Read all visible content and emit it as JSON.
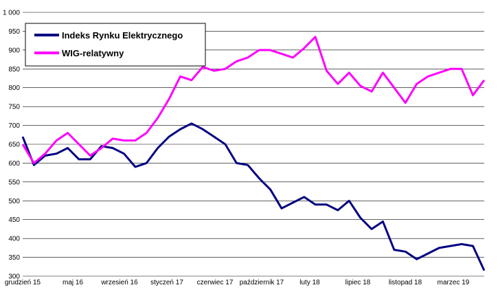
{
  "chart_data": {
    "type": "line",
    "title": "",
    "xlabel": "",
    "ylabel": "",
    "ylim": [
      300,
      1000
    ],
    "yticks": [
      300,
      350,
      400,
      450,
      500,
      550,
      600,
      650,
      700,
      750,
      800,
      850,
      900,
      950,
      1000
    ],
    "ytick_labels": [
      "300",
      "350",
      "400",
      "450",
      "500",
      "550",
      "600",
      "650",
      "700",
      "750",
      "800",
      "850",
      "900",
      "950",
      "1 000"
    ],
    "x_tick_labels": [
      "grudzień 15",
      "maj 16",
      "wrzesień 16",
      "styczeń 17",
      "czerwiec 17",
      "październik 17",
      "luty 18",
      "lipiec 18",
      "listopad 18",
      "marzec 19"
    ],
    "grid": "horizontal",
    "legend_position": "top-left",
    "x": [
      "2015-12",
      "2016-01",
      "2016-02",
      "2016-03",
      "2016-04",
      "2016-05",
      "2016-06",
      "2016-07",
      "2016-08",
      "2016-09",
      "2016-10",
      "2016-11",
      "2016-12",
      "2017-01",
      "2017-02",
      "2017-03",
      "2017-04",
      "2017-05",
      "2017-06",
      "2017-07",
      "2017-08",
      "2017-09",
      "2017-10",
      "2017-11",
      "2017-12",
      "2018-01",
      "2018-02",
      "2018-03",
      "2018-04",
      "2018-05",
      "2018-06",
      "2018-07",
      "2018-08",
      "2018-09",
      "2018-10",
      "2018-11",
      "2018-12",
      "2019-01",
      "2019-02",
      "2019-03",
      "2019-04",
      "2019-05"
    ],
    "series": [
      {
        "name": "Indeks Rynku Elektrycznego",
        "color": "#000080",
        "values": [
          670,
          595,
          620,
          625,
          640,
          610,
          610,
          645,
          640,
          625,
          590,
          600,
          640,
          670,
          690,
          705,
          690,
          670,
          650,
          600,
          595,
          560,
          530,
          480,
          495,
          510,
          490,
          490,
          475,
          500,
          455,
          425,
          445,
          370,
          365,
          345,
          360,
          375,
          380,
          385,
          380,
          315
        ]
      },
      {
        "name": "WIG-relatywny",
        "color": "#ff00ff",
        "values": [
          650,
          600,
          625,
          660,
          680,
          650,
          620,
          640,
          665,
          660,
          660,
          680,
          720,
          770,
          830,
          820,
          855,
          845,
          850,
          870,
          880,
          900,
          900,
          890,
          880,
          905,
          935,
          845,
          810,
          840,
          805,
          790,
          840,
          800,
          760,
          810,
          830,
          840,
          850,
          850,
          780,
          820
        ]
      }
    ]
  }
}
